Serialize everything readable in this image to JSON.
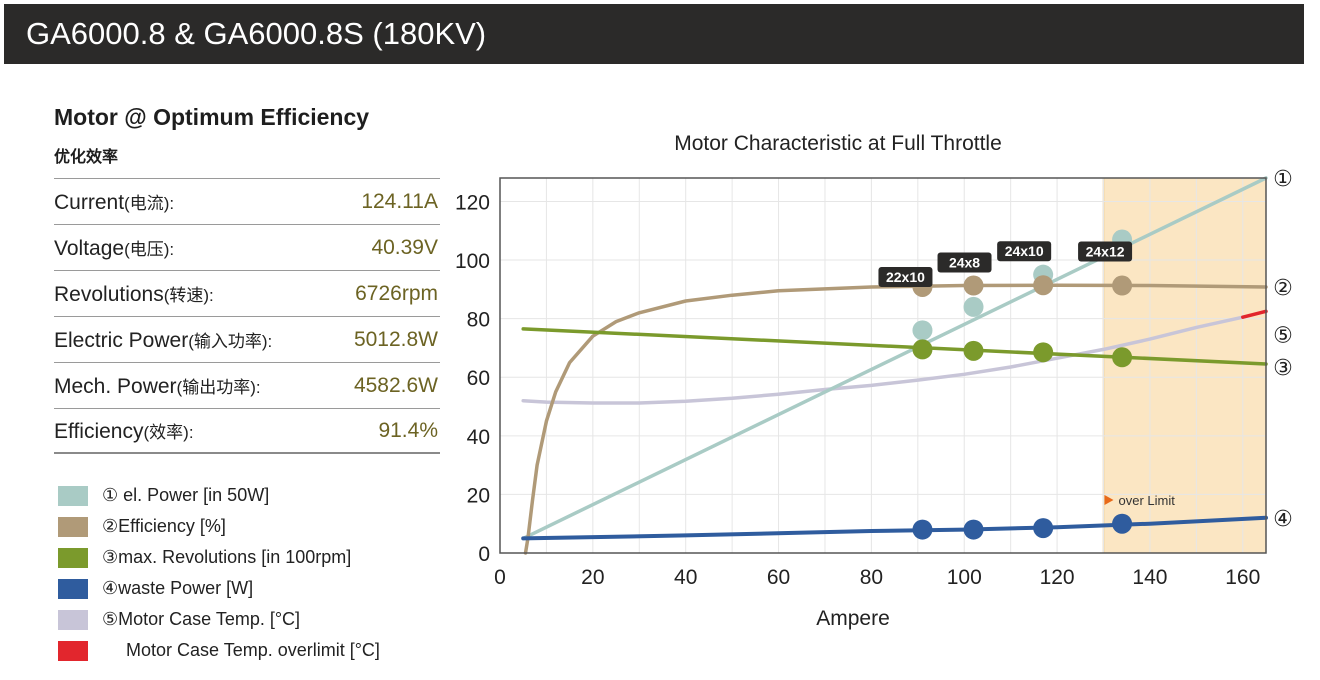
{
  "header": {
    "title": "GA6000.8 & GA6000.8S (180KV)"
  },
  "spec": {
    "heading": "Motor @ Optimum Efficiency",
    "subheading": "优化效率",
    "rows": [
      {
        "label": "Current",
        "label_cn": "(电流):",
        "value": "124.11A"
      },
      {
        "label": "Voltage",
        "label_cn": "(电压):",
        "value": "40.39V"
      },
      {
        "label": "Revolutions",
        "label_cn": "(转速):",
        "value": "6726rpm"
      },
      {
        "label": "Electric Power",
        "label_cn": "(输入功率):",
        "value": "5012.8W"
      },
      {
        "label": "Mech. Power",
        "label_cn": "(输出功率):",
        "value": "4582.6W"
      },
      {
        "label": "Efficiency",
        "label_cn": "(效率):",
        "value": "91.4%"
      }
    ]
  },
  "legend": [
    {
      "text": "① el. Power [in 50W]",
      "color": "#a9cbc5"
    },
    {
      "text": "②Efficiency [%]",
      "color": "#b09a78"
    },
    {
      "text": "③max. Revolutions [in 100rpm]",
      "color": "#7b9a2c"
    },
    {
      "text": "④waste Power [W]",
      "color": "#2f5c9e"
    },
    {
      "text": "⑤Motor Case Temp. [°C]",
      "color": "#c8c5d8"
    },
    {
      "text": "Motor Case Temp. overlimit [°C]",
      "color": "#e2262d"
    }
  ],
  "chart_data": {
    "type": "line",
    "title": "Motor Characteristic at Full Throttle",
    "xlabel": "Ampere",
    "ylabel": "",
    "xlim": [
      0,
      165
    ],
    "ylim": [
      0,
      128
    ],
    "xticks": [
      0,
      20,
      40,
      60,
      80,
      100,
      120,
      140,
      160
    ],
    "yticks": [
      0,
      20,
      40,
      60,
      80,
      100,
      120
    ],
    "over_limit_from": 130,
    "over_limit_label": "over Limit",
    "over_limit_color": "#fbe6c3",
    "series": [
      {
        "name": "① el. Power [in 50W]",
        "marker": "①",
        "color": "#a9cbc5",
        "x": [
          5,
          165
        ],
        "y": [
          5,
          128
        ]
      },
      {
        "name": "②Efficiency [%]",
        "marker": "②",
        "color": "#b09a78",
        "x": [
          5.5,
          6,
          7,
          8,
          10,
          12,
          15,
          20,
          25,
          30,
          40,
          50,
          60,
          80,
          100,
          120,
          140,
          165
        ],
        "y": [
          0,
          5,
          18,
          30,
          45,
          55,
          65,
          74,
          79,
          82,
          86,
          88,
          89.5,
          90.8,
          91.3,
          91.4,
          91.3,
          90.8
        ]
      },
      {
        "name": "③max. Revolutions [in 100rpm]",
        "marker": "③",
        "color": "#7b9a2c",
        "x": [
          5,
          165
        ],
        "y": [
          76.5,
          64.5
        ]
      },
      {
        "name": "④waste Power [W]",
        "marker": "④",
        "color": "#2f5c9e",
        "x": [
          5,
          40,
          80,
          100,
          120,
          140,
          165
        ],
        "y": [
          5,
          6,
          7.5,
          8,
          8.8,
          10,
          12
        ]
      },
      {
        "name": "⑤Motor Case Temp. [°C]",
        "marker": "⑤",
        "color": "#c8c5d8",
        "x": [
          5,
          10,
          20,
          30,
          40,
          50,
          60,
          70,
          80,
          90,
          100,
          110,
          120,
          130,
          140,
          150,
          160
        ],
        "y": [
          52,
          51.5,
          51.2,
          51.2,
          51.8,
          52.8,
          54.2,
          55.8,
          57.2,
          59,
          61,
          63.5,
          66.5,
          69.5,
          73,
          77,
          80.5
        ]
      },
      {
        "name": "Motor Case Temp. overlimit [°C]",
        "marker": "",
        "color": "#e2262d",
        "x": [
          160,
          165
        ],
        "y": [
          80.5,
          82.5
        ]
      }
    ],
    "propellers": [
      {
        "label": "22x10",
        "x": 91,
        "efficiency": 90.8,
        "el_power": 76,
        "revolutions": 69.5,
        "waste": 8
      },
      {
        "label": "24x8",
        "x": 102,
        "efficiency": 91.3,
        "el_power": 84,
        "revolutions": 69,
        "waste": 8
      },
      {
        "label": "24x10",
        "x": 117,
        "efficiency": 91.4,
        "el_power": 95,
        "revolutions": 68.5,
        "waste": 8.5
      },
      {
        "label": "24x12",
        "x": 134,
        "efficiency": 91.3,
        "el_power": 107,
        "revolutions": 66.8,
        "waste": 10
      }
    ]
  }
}
